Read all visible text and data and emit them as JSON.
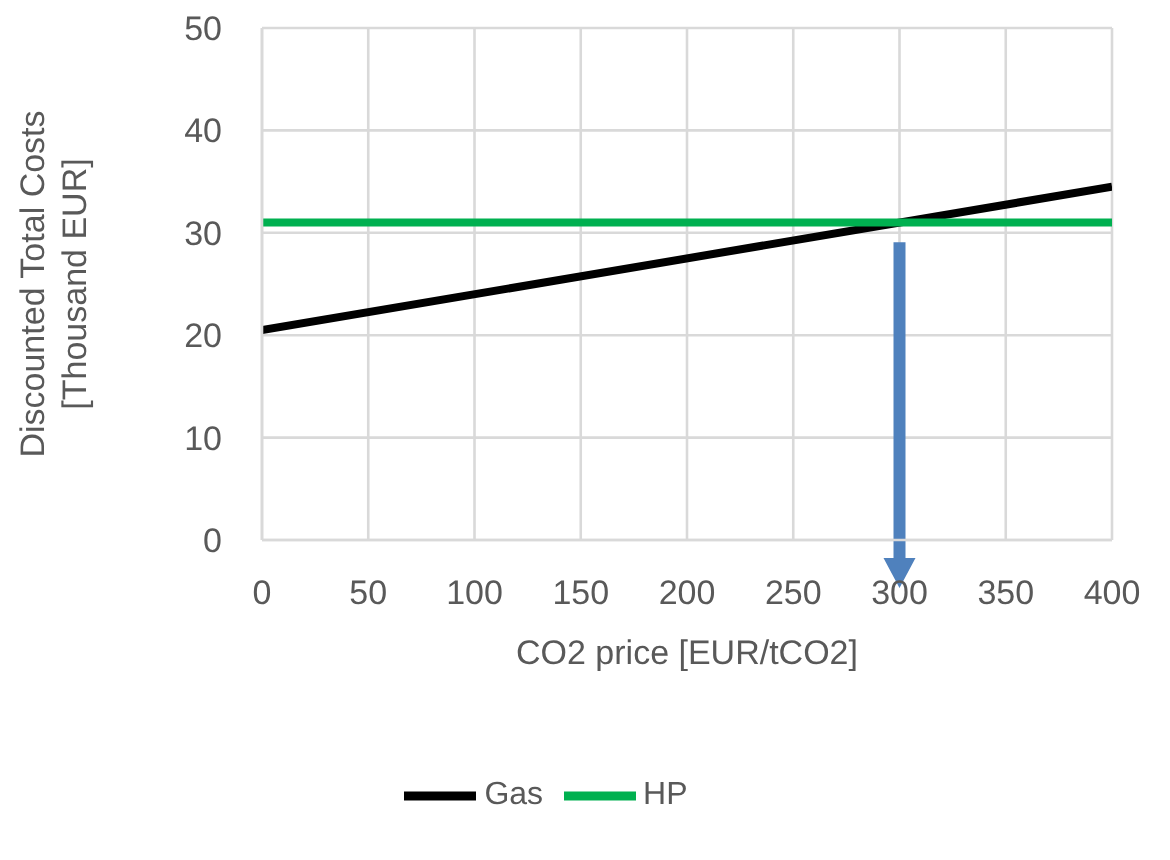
{
  "chart_data": {
    "type": "line",
    "xlabel": "CO2 price [EUR/tCO2]",
    "ylabel": "Discounted Total Costs\n[Thousand EUR]",
    "x": [
      0,
      400
    ],
    "series": [
      {
        "name": "Gas",
        "color": "#000000",
        "values": [
          20.5,
          34.5
        ]
      },
      {
        "name": "HP",
        "color": "#00b050",
        "values": [
          31,
          31
        ]
      }
    ],
    "xlim": [
      0,
      400
    ],
    "xticks": [
      0,
      50,
      100,
      150,
      200,
      250,
      300,
      350,
      400
    ],
    "ylim": [
      0,
      50
    ],
    "yticks": [
      0,
      10,
      20,
      30,
      40,
      50
    ],
    "grid": true,
    "legend": "bottom",
    "marker": "none",
    "line_style": "solid"
  }
}
